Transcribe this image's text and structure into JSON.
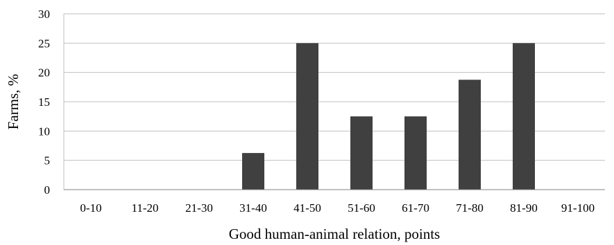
{
  "chart_data": {
    "type": "bar",
    "categories": [
      "0-10",
      "11-20",
      "21-30",
      "31-40",
      "41-50",
      "51-60",
      "61-70",
      "71-80",
      "81-90",
      "91-100"
    ],
    "values": [
      0,
      0,
      0,
      6.25,
      25,
      12.5,
      12.5,
      18.75,
      25,
      0
    ],
    "xlabel": "Good  human-animal relation, points",
    "ylabel": "Farms, %",
    "ylim": [
      0,
      30
    ],
    "yticks": [
      "0",
      "5",
      "10",
      "15",
      "20",
      "25",
      "30"
    ],
    "grid": true,
    "legend": "none",
    "bar_color": "#404040"
  }
}
